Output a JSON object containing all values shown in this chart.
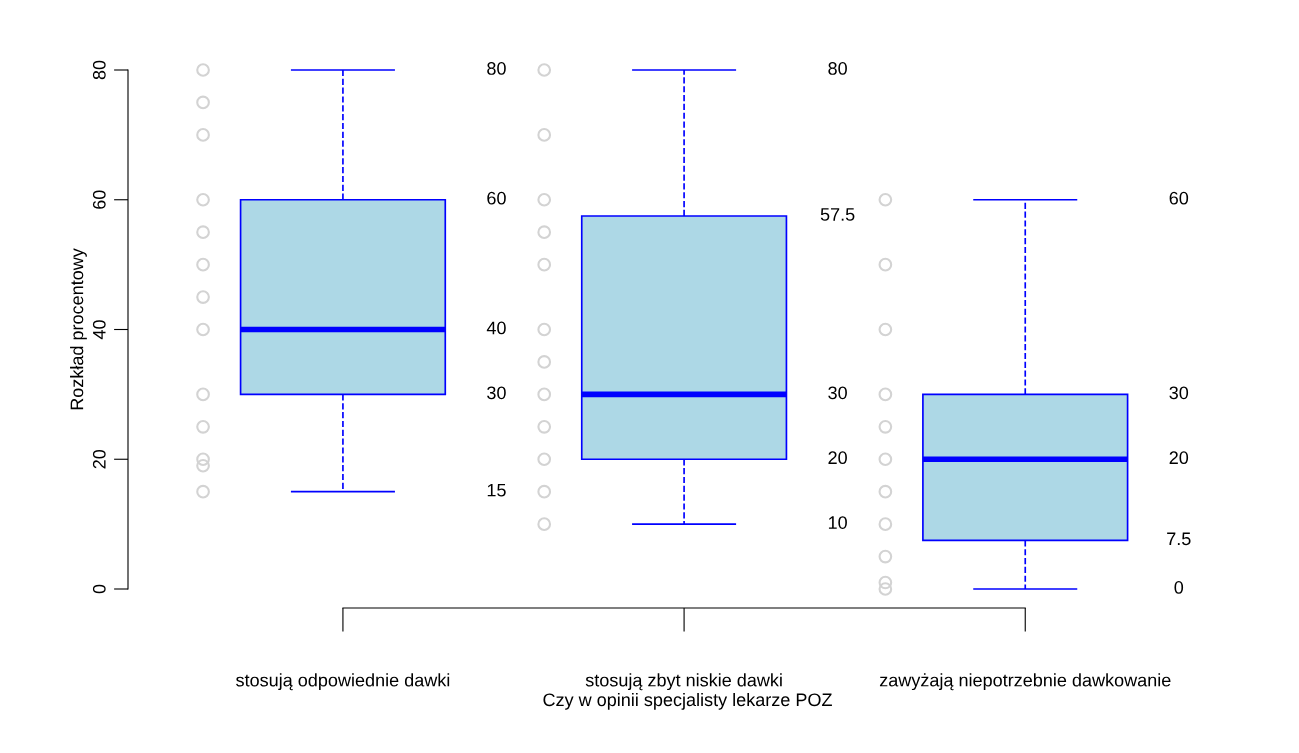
{
  "chart_data": {
    "type": "box",
    "xlabel": "Czy w opinii specjalisty lekarze POZ",
    "ylabel": "Rozkład procentowy",
    "categories": [
      "stosują odpowiednie dawki",
      "stosują zbyt niskie dawki",
      "zawyżają niepotrzebnie dawkowanie"
    ],
    "boxes": [
      {
        "low": 15,
        "q1": 30,
        "median": 40,
        "q3": 60,
        "high": 80
      },
      {
        "low": 10,
        "q1": 20,
        "median": 30,
        "q3": 57.5,
        "high": 80
      },
      {
        "low": 0,
        "q1": 7.5,
        "median": 20,
        "q3": 30,
        "high": 60
      }
    ],
    "color": "#add8e6",
    "marker": "circle",
    "series": [
      {
        "type": "scatter",
        "color": "#d3d3d3",
        "x": [
          "stosują odpowiednie dawki",
          "stosują odpowiednie dawki",
          "stosują odpowiednie dawki",
          "stosują odpowiednie dawki",
          "stosują odpowiednie dawki",
          "stosują odpowiednie dawki",
          "stosują odpowiednie dawki",
          "stosują odpowiednie dawki",
          "stosują odpowiednie dawki",
          "stosują odpowiednie dawki",
          "stosują odpowiednie dawki",
          "stosują odpowiednie dawki",
          "stosują odpowiednie dawki",
          "stosują zbyt niskie dawki",
          "stosują zbyt niskie dawki",
          "stosują zbyt niskie dawki",
          "stosują zbyt niskie dawki",
          "stosują zbyt niskie dawki",
          "stosują zbyt niskie dawki",
          "stosują zbyt niskie dawki",
          "stosują zbyt niskie dawki",
          "stosują zbyt niskie dawki",
          "stosują zbyt niskie dawki",
          "stosują zbyt niskie dawki",
          "stosują zbyt niskie dawki",
          "zawyżają niepotrzebnie dawkowanie",
          "zawyżają niepotrzebnie dawkowanie",
          "zawyżają niepotrzebnie dawkowanie",
          "zawyżają niepotrzebnie dawkowanie",
          "zawyżają niepotrzebnie dawkowanie",
          "zawyżają niepotrzebnie dawkowanie",
          "zawyżają niepotrzebnie dawkowanie",
          "zawyżają niepotrzebnie dawkowanie",
          "zawyżają niepotrzebnie dawkowanie",
          "zawyżają niepotrzebnie dawkowanie",
          "zawyżają niepotrzebnie dawkowanie"
        ],
        "values": [
          80,
          75,
          70,
          60,
          55,
          50,
          45,
          40,
          30,
          25,
          20,
          19,
          15,
          80,
          70,
          60,
          55,
          50,
          40,
          35,
          30,
          25,
          20,
          15,
          10,
          60,
          50,
          40,
          30,
          25,
          20,
          15,
          10,
          5,
          1,
          0
        ]
      }
    ],
    "annotations": [
      "80",
      "60",
      "40",
      "30",
      "15",
      "80",
      "57.5",
      "30",
      "20",
      "10",
      "60",
      "30",
      "20",
      "7.5",
      "0"
    ],
    "ylim": [
      0,
      80
    ],
    "yticks": [
      0,
      20,
      40,
      60,
      80
    ],
    "grid": false,
    "legend": false
  }
}
